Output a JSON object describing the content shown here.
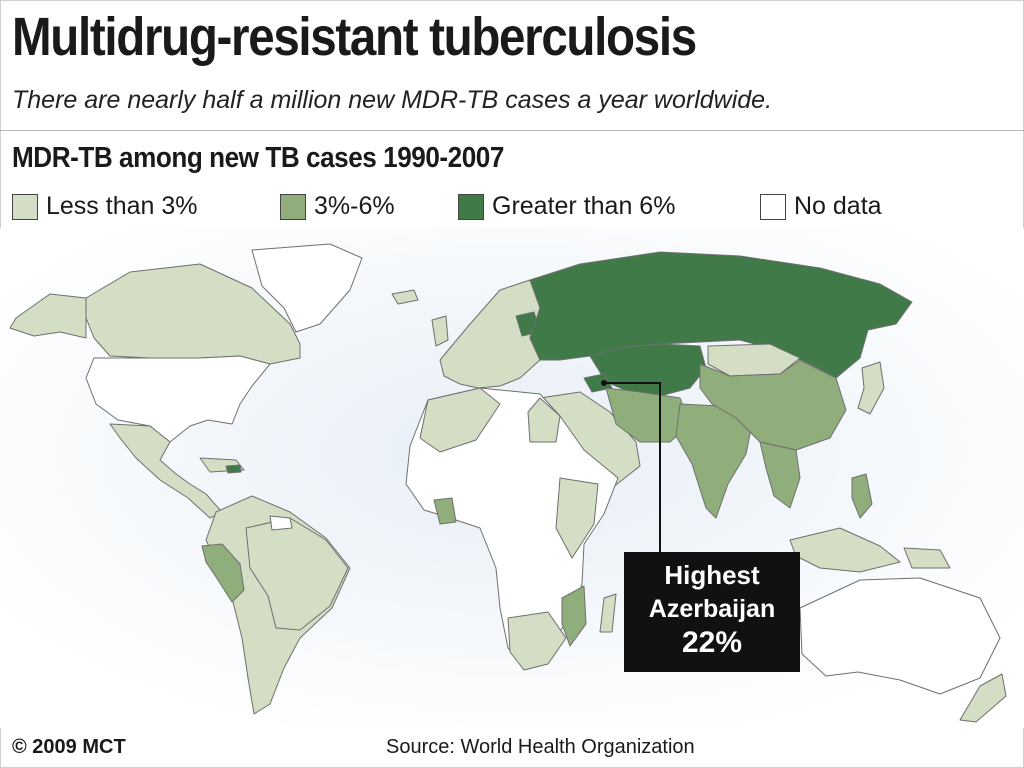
{
  "header": {
    "title": "Multidrug-resistant tuberculosis",
    "subtitle": "There are nearly half a million new MDR-TB cases a year worldwide."
  },
  "map": {
    "title": "MDR-TB among new TB cases 1990-2007",
    "legend": [
      {
        "label": "Less than 3%",
        "color": "#d3dec4"
      },
      {
        "label": "3%-6%",
        "color": "#8fae7b"
      },
      {
        "label": "Greater than 6%",
        "color": "#3f7a48"
      },
      {
        "label": "No data",
        "color": "#ffffff"
      }
    ],
    "regions": [
      {
        "name": "North America",
        "category": "Less than 3%"
      },
      {
        "name": "United States",
        "category": "No data"
      },
      {
        "name": "Russia and Central Asia",
        "category": "Greater than 6%"
      },
      {
        "name": "China",
        "category": "3%-6%"
      },
      {
        "name": "Peru",
        "category": "3%-6%"
      },
      {
        "name": "Australia",
        "category": "No data"
      }
    ],
    "callout": {
      "line1": "Highest",
      "line2": "Azerbaijan",
      "line3": "22%"
    }
  },
  "footer": {
    "credit": "© 2009 MCT",
    "source": "Source: World Health Organization"
  }
}
